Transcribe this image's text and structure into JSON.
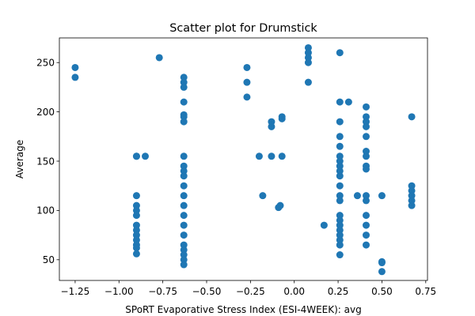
{
  "chart_data": {
    "type": "scatter",
    "title": "Scatter plot for Drumstick",
    "xlabel": "SPoRT Evaporative Stress Index (ESI-4WEEK): avg",
    "ylabel": "Average",
    "xlim": [
      -1.34,
      0.76
    ],
    "ylim": [
      29,
      275
    ],
    "xticks": [
      -1.25,
      -1.0,
      -0.75,
      -0.5,
      -0.25,
      0.0,
      0.25,
      0.5,
      0.75
    ],
    "xtick_labels": [
      "−1.25",
      "−1.00",
      "−0.75",
      "−0.50",
      "−0.25",
      "0.00",
      "0.25",
      "0.50",
      "0.75"
    ],
    "yticks": [
      50,
      100,
      150,
      200,
      250
    ],
    "ytick_labels": [
      "50",
      "100",
      "150",
      "200",
      "250"
    ],
    "grid": false,
    "marker_color": "#1f77b4",
    "points": [
      [
        -1.25,
        245
      ],
      [
        -1.25,
        235
      ],
      [
        -0.9,
        155
      ],
      [
        -0.9,
        155
      ],
      [
        -0.9,
        115
      ],
      [
        -0.9,
        105
      ],
      [
        -0.9,
        100
      ],
      [
        -0.9,
        95
      ],
      [
        -0.9,
        85
      ],
      [
        -0.9,
        80
      ],
      [
        -0.9,
        75
      ],
      [
        -0.9,
        70
      ],
      [
        -0.9,
        65
      ],
      [
        -0.9,
        62
      ],
      [
        -0.9,
        56
      ],
      [
        -0.85,
        155
      ],
      [
        -0.77,
        255
      ],
      [
        -0.63,
        235
      ],
      [
        -0.63,
        230
      ],
      [
        -0.63,
        225
      ],
      [
        -0.63,
        210
      ],
      [
        -0.63,
        197
      ],
      [
        -0.63,
        195
      ],
      [
        -0.63,
        190
      ],
      [
        -0.63,
        155
      ],
      [
        -0.63,
        145
      ],
      [
        -0.63,
        140
      ],
      [
        -0.63,
        135
      ],
      [
        -0.63,
        125
      ],
      [
        -0.63,
        115
      ],
      [
        -0.63,
        105
      ],
      [
        -0.63,
        95
      ],
      [
        -0.63,
        85
      ],
      [
        -0.63,
        75
      ],
      [
        -0.63,
        65
      ],
      [
        -0.63,
        60
      ],
      [
        -0.63,
        55
      ],
      [
        -0.63,
        50
      ],
      [
        -0.63,
        45
      ],
      [
        -0.27,
        245
      ],
      [
        -0.27,
        230
      ],
      [
        -0.27,
        215
      ],
      [
        -0.2,
        155
      ],
      [
        -0.18,
        115
      ],
      [
        -0.13,
        190
      ],
      [
        -0.13,
        185
      ],
      [
        -0.13,
        155
      ],
      [
        -0.09,
        103
      ],
      [
        -0.08,
        105
      ],
      [
        -0.07,
        195
      ],
      [
        -0.07,
        193
      ],
      [
        -0.07,
        155
      ],
      [
        0.08,
        265
      ],
      [
        0.08,
        260
      ],
      [
        0.08,
        255
      ],
      [
        0.08,
        250
      ],
      [
        0.08,
        230
      ],
      [
        0.17,
        85
      ],
      [
        0.26,
        260
      ],
      [
        0.26,
        210
      ],
      [
        0.26,
        190
      ],
      [
        0.26,
        175
      ],
      [
        0.26,
        165
      ],
      [
        0.26,
        155
      ],
      [
        0.26,
        150
      ],
      [
        0.26,
        145
      ],
      [
        0.26,
        140
      ],
      [
        0.26,
        135
      ],
      [
        0.26,
        125
      ],
      [
        0.26,
        115
      ],
      [
        0.26,
        110
      ],
      [
        0.26,
        95
      ],
      [
        0.26,
        90
      ],
      [
        0.26,
        85
      ],
      [
        0.26,
        80
      ],
      [
        0.26,
        75
      ],
      [
        0.26,
        70
      ],
      [
        0.26,
        65
      ],
      [
        0.26,
        55
      ],
      [
        0.31,
        210
      ],
      [
        0.36,
        115
      ],
      [
        0.41,
        205
      ],
      [
        0.41,
        195
      ],
      [
        0.41,
        190
      ],
      [
        0.41,
        185
      ],
      [
        0.41,
        175
      ],
      [
        0.41,
        160
      ],
      [
        0.41,
        155
      ],
      [
        0.41,
        145
      ],
      [
        0.41,
        142
      ],
      [
        0.41,
        115
      ],
      [
        0.41,
        110
      ],
      [
        0.41,
        95
      ],
      [
        0.41,
        85
      ],
      [
        0.41,
        75
      ],
      [
        0.41,
        65
      ],
      [
        0.5,
        115
      ],
      [
        0.5,
        48
      ],
      [
        0.5,
        47
      ],
      [
        0.5,
        38
      ],
      [
        0.67,
        195
      ],
      [
        0.67,
        125
      ],
      [
        0.67,
        120
      ],
      [
        0.67,
        115
      ],
      [
        0.67,
        110
      ],
      [
        0.67,
        105
      ]
    ]
  }
}
